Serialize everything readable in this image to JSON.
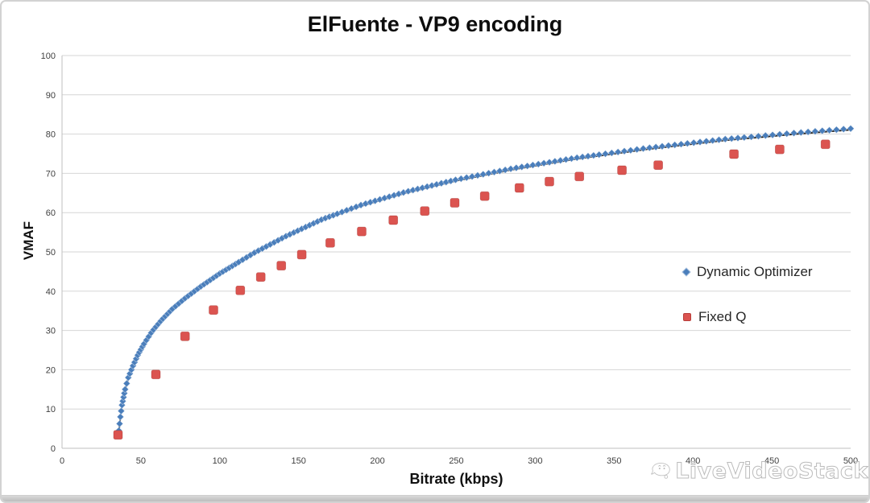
{
  "chart_data": {
    "type": "scatter",
    "title": "ElFuente - VP9 encoding",
    "xlabel": "Bitrate (kbps)",
    "ylabel": "VMAF",
    "xlim": [
      0,
      500
    ],
    "ylim": [
      0,
      100
    ],
    "xticks": [
      0,
      50,
      100,
      150,
      200,
      250,
      300,
      350,
      400,
      450,
      500
    ],
    "yticks": [
      0,
      10,
      20,
      30,
      40,
      50,
      60,
      70,
      80,
      90,
      100
    ],
    "grid": "horizontal-only",
    "legend_position": "middle-right",
    "series": [
      {
        "name": "Dynamic Optimizer",
        "marker": "diamond",
        "color": "#4a7ebb",
        "marker_outline": "rgba(255,255,255,0.45)",
        "dense_marker_curve": true,
        "trend_line_color": "#151515",
        "points": [
          [
            36,
            4.5
          ],
          [
            37,
            8
          ],
          [
            38,
            11
          ],
          [
            40,
            15
          ],
          [
            42,
            18
          ],
          [
            45,
            21
          ],
          [
            48,
            23.7
          ],
          [
            52,
            26.6
          ],
          [
            57,
            29.7
          ],
          [
            63,
            32.6
          ],
          [
            70,
            35.5
          ],
          [
            78,
            38.2
          ],
          [
            88,
            41.2
          ],
          [
            100,
            44.5
          ],
          [
            112,
            47.4
          ],
          [
            122,
            49.8
          ],
          [
            142,
            54
          ],
          [
            165,
            58.3
          ],
          [
            190,
            62
          ],
          [
            218,
            65.3
          ],
          [
            250,
            68.4
          ],
          [
            285,
            71.2
          ],
          [
            325,
            73.9
          ],
          [
            370,
            76.4
          ],
          [
            420,
            78.7
          ],
          [
            465,
            80.3
          ],
          [
            500,
            81.4
          ]
        ]
      },
      {
        "name": "Fixed Q",
        "marker": "square",
        "color": "#db5450",
        "marker_outline": "rgba(150,40,35,0.45)",
        "points": [
          [
            35.5,
            3.4
          ],
          [
            59.5,
            18.8
          ],
          [
            78,
            28.5
          ],
          [
            96,
            35.2
          ],
          [
            113,
            40.2
          ],
          [
            126,
            43.6
          ],
          [
            139,
            46.5
          ],
          [
            152,
            49.3
          ],
          [
            170,
            52.3
          ],
          [
            190,
            55.2
          ],
          [
            210,
            58.1
          ],
          [
            230,
            60.4
          ],
          [
            249,
            62.5
          ],
          [
            268,
            64.2
          ],
          [
            290,
            66.3
          ],
          [
            309,
            67.9
          ],
          [
            328,
            69.2
          ],
          [
            355,
            70.8
          ],
          [
            378,
            72.1
          ],
          [
            426,
            74.9
          ],
          [
            455,
            76.1
          ],
          [
            484,
            77.4
          ]
        ]
      }
    ]
  },
  "style": {
    "gridline_color": "#d6d6d6",
    "axis_line_color": "#bfbfbf",
    "tick_label_color": "#3f3f3f",
    "tick_font_size": 11
  },
  "watermark": {
    "text": "LiveVideoStack",
    "logo": "livevideostack-whale-logo"
  }
}
